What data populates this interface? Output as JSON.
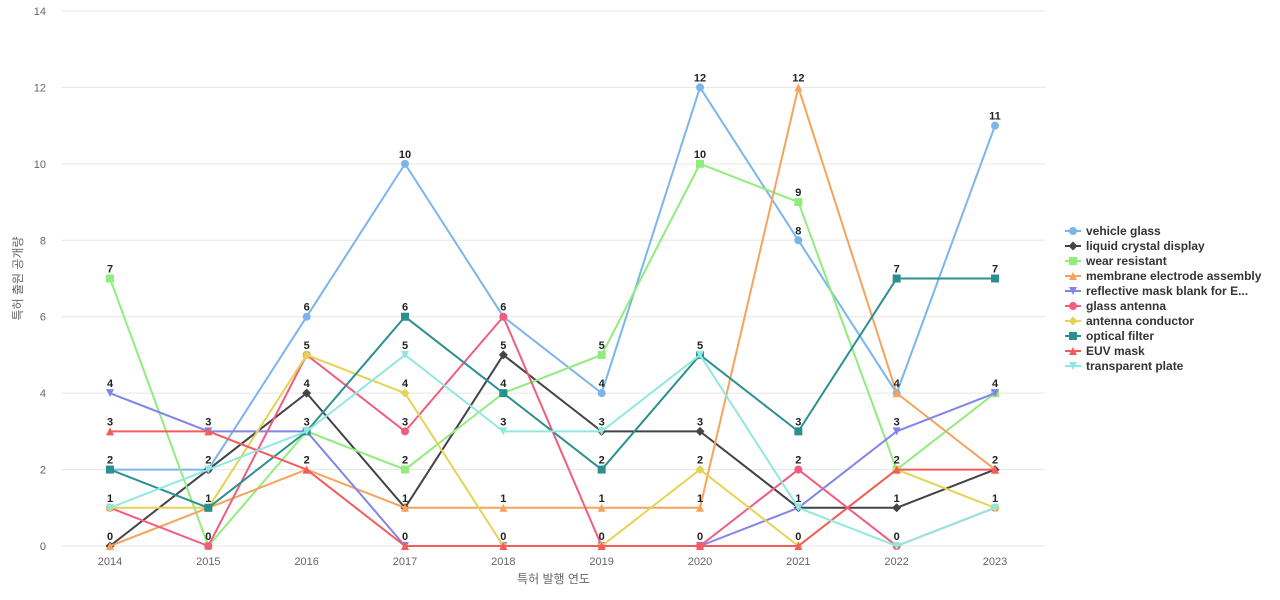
{
  "chart_data": {
    "type": "line",
    "title": "",
    "xlabel": "특허 발행 연도",
    "ylabel": "특허 출원 공개량",
    "ylim": [
      0,
      14
    ],
    "yticks": [
      0,
      2,
      4,
      6,
      8,
      10,
      12,
      14
    ],
    "grid": true,
    "legend_position": "right",
    "x": [
      "2014",
      "2015",
      "2016",
      "2017",
      "2018",
      "2019",
      "2020",
      "2021",
      "2022",
      "2023"
    ],
    "series": [
      {
        "name": "vehicle glass",
        "color": "#7cb5ec",
        "marker": "circle",
        "values": [
          2,
          2,
          6,
          10,
          6,
          4,
          12,
          8,
          4,
          11
        ]
      },
      {
        "name": "liquid crystal display",
        "color": "#434348",
        "marker": "diamond",
        "values": [
          0,
          2,
          4,
          1,
          5,
          3,
          3,
          1,
          1,
          2
        ]
      },
      {
        "name": "wear resistant",
        "color": "#90ed7d",
        "marker": "square",
        "values": [
          7,
          0,
          3,
          2,
          4,
          5,
          10,
          9,
          2,
          4
        ]
      },
      {
        "name": "membrane electrode assembly",
        "color": "#f7a35c",
        "marker": "triangle",
        "values": [
          0,
          1,
          2,
          1,
          1,
          1,
          1,
          12,
          4,
          2
        ]
      },
      {
        "name": "reflective mask blank for E...",
        "color": "#8085e9",
        "marker": "triangle-down",
        "values": [
          4,
          3,
          3,
          0,
          0,
          0,
          0,
          1,
          3,
          4
        ]
      },
      {
        "name": "glass antenna",
        "color": "#f15c80",
        "marker": "circle",
        "values": [
          1,
          0,
          5,
          3,
          6,
          0,
          0,
          2,
          0,
          1
        ]
      },
      {
        "name": "antenna conductor",
        "color": "#e4d354",
        "marker": "diamond",
        "values": [
          1,
          1,
          5,
          4,
          0,
          0,
          2,
          0,
          2,
          1
        ]
      },
      {
        "name": "optical filter",
        "color": "#2b908f",
        "marker": "square",
        "values": [
          2,
          1,
          3,
          6,
          4,
          2,
          5,
          3,
          7,
          7
        ]
      },
      {
        "name": "EUV mask",
        "color": "#f45b5b",
        "marker": "triangle",
        "values": [
          3,
          3,
          2,
          0,
          0,
          0,
          0,
          0,
          2,
          2
        ]
      },
      {
        "name": "transparent plate",
        "color": "#91e8e1",
        "marker": "triangle-down",
        "values": [
          1,
          2,
          3,
          5,
          3,
          3,
          5,
          1,
          0,
          1
        ]
      }
    ],
    "data_labels": [
      [
        [
          "2014",
          0,
          "7"
        ],
        [
          "2014",
          1,
          "4"
        ],
        [
          "2014",
          2,
          "3"
        ],
        [
          "2014",
          3,
          "2"
        ],
        [
          "2014",
          4,
          "1"
        ],
        [
          "2014",
          5,
          "0"
        ]
      ],
      [
        [
          "2015",
          0,
          "3"
        ],
        [
          "2015",
          1,
          "2"
        ],
        [
          "2015",
          2,
          "1"
        ],
        [
          "2015",
          3,
          "0"
        ]
      ],
      [
        [
          "2016",
          0,
          "6"
        ],
        [
          "2016",
          1,
          "5"
        ],
        [
          "2016",
          2,
          "4"
        ],
        [
          "2016",
          3,
          "3"
        ],
        [
          "2016",
          4,
          "2"
        ]
      ],
      [
        [
          "2017",
          0,
          "10"
        ],
        [
          "2017",
          1,
          "6"
        ],
        [
          "2017",
          2,
          "5"
        ],
        [
          "2017",
          3,
          "4"
        ],
        [
          "2017",
          4,
          "3"
        ],
        [
          "2017",
          5,
          "2"
        ],
        [
          "2017",
          6,
          "1"
        ],
        [
          "2017",
          7,
          "0"
        ]
      ],
      [
        [
          "2018",
          0,
          "6"
        ],
        [
          "2018",
          1,
          "5"
        ],
        [
          "2018",
          2,
          "4"
        ],
        [
          "2018",
          3,
          "3"
        ],
        [
          "2018",
          4,
          "1"
        ],
        [
          "2018",
          5,
          "0"
        ]
      ],
      [
        [
          "2019",
          0,
          "5"
        ],
        [
          "2019",
          1,
          "4"
        ],
        [
          "2019",
          2,
          "3"
        ],
        [
          "2019",
          3,
          "2"
        ],
        [
          "2019",
          4,
          "1"
        ],
        [
          "2019",
          5,
          "0"
        ]
      ],
      [
        [
          "2020",
          0,
          "12"
        ],
        [
          "2020",
          1,
          "10"
        ],
        [
          "2020",
          2,
          "5"
        ],
        [
          "2020",
          3,
          "3"
        ],
        [
          "2020",
          4,
          "2"
        ],
        [
          "2020",
          5,
          "1"
        ],
        [
          "2020",
          6,
          "0"
        ]
      ],
      [
        [
          "2021",
          0,
          "12"
        ],
        [
          "2021",
          1,
          "9"
        ],
        [
          "2021",
          2,
          "8"
        ],
        [
          "2021",
          3,
          "3"
        ],
        [
          "2021",
          4,
          "2"
        ],
        [
          "2021",
          5,
          "1"
        ],
        [
          "2021",
          6,
          "0"
        ]
      ],
      [
        [
          "2022",
          0,
          "7"
        ],
        [
          "2022",
          1,
          "4"
        ],
        [
          "2022",
          2,
          "3"
        ],
        [
          "2022",
          3,
          "2"
        ],
        [
          "2022",
          4,
          "1"
        ],
        [
          "2022",
          5,
          "0"
        ]
      ],
      [
        [
          "2023",
          0,
          "11"
        ],
        [
          "2023",
          1,
          "7"
        ],
        [
          "2023",
          2,
          "4"
        ],
        [
          "2023",
          3,
          "2"
        ],
        [
          "2023",
          4,
          "1"
        ]
      ]
    ]
  }
}
